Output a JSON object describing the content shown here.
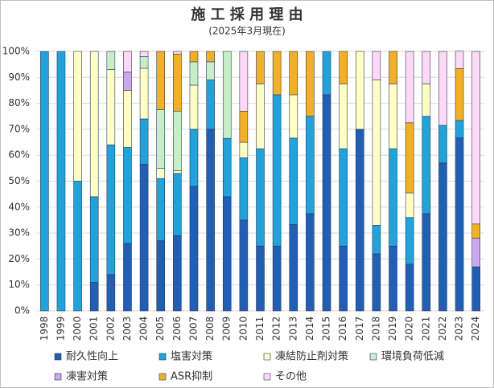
{
  "chart_data": {
    "type": "stacked_bar",
    "title": "施 工 採 用 理 由",
    "subtitle": "(2025年3月現在)",
    "categories": [
      "1998",
      "1999",
      "2000",
      "2001",
      "2002",
      "2003",
      "2004",
      "2005",
      "2006",
      "2007",
      "2008",
      "2009",
      "2010",
      "2011",
      "2012",
      "2013",
      "2014",
      "2015",
      "2016",
      "2017",
      "2018",
      "2019",
      "2020",
      "2021",
      "2022",
      "2023",
      "2024"
    ],
    "series": [
      {
        "name": "耐久性向上",
        "color": "#1f5fb8",
        "values": [
          0,
          0,
          0,
          11,
          14,
          26,
          56.5,
          27,
          29,
          48,
          70,
          44,
          35,
          25,
          25,
          33.3,
          37.5,
          83.3,
          25,
          70,
          22,
          25,
          18,
          37.5,
          57,
          66.7,
          17
        ]
      },
      {
        "name": "塩害対策",
        "color": "#1ea3dc",
        "values": [
          100,
          100,
          50,
          33,
          50,
          37,
          17.5,
          24,
          24,
          22,
          19,
          22.5,
          24,
          37.5,
          58.3,
          33.3,
          37.5,
          16.7,
          37.5,
          0,
          11,
          37.5,
          18,
          37.5,
          14.5,
          6.7,
          0
        ]
      },
      {
        "name": "凍結防止剤対策",
        "color": "#ffffc4",
        "values": [
          0,
          0,
          50,
          56,
          29,
          22,
          19.5,
          4,
          1,
          17,
          0,
          0,
          6,
          25,
          0,
          16.7,
          0,
          0,
          25,
          30,
          56,
          25,
          9.5,
          12.5,
          0,
          0,
          0
        ]
      },
      {
        "name": "環境負荷低減",
        "color": "#c6efc8",
        "values": [
          0,
          0,
          0,
          0,
          7,
          0,
          4.5,
          22.5,
          23,
          9,
          7,
          33.5,
          0,
          0,
          0,
          0,
          0,
          0,
          0,
          0,
          0,
          0,
          0,
          0,
          0,
          0,
          0
        ]
      },
      {
        "name": "凍害対策",
        "color": "#c9a8f0",
        "values": [
          0,
          0,
          0,
          0,
          0,
          7,
          0,
          0,
          0,
          0,
          0,
          0,
          0,
          0,
          0,
          0,
          0,
          0,
          0,
          0,
          0,
          0,
          0,
          0,
          0,
          0,
          11
        ]
      },
      {
        "name": "ASR抑制",
        "color": "#f5b021",
        "values": [
          0,
          0,
          0,
          0,
          0,
          0,
          0,
          22.5,
          22,
          4,
          4,
          0,
          12,
          12.5,
          16.7,
          16.7,
          25,
          0,
          12.5,
          0,
          0,
          12.5,
          27,
          0,
          0,
          20,
          5.5
        ]
      },
      {
        "name": "その他",
        "color": "#ffd8f8",
        "values": [
          0,
          0,
          0,
          0,
          0,
          8,
          2,
          0,
          1,
          0,
          0,
          0,
          23,
          0,
          0,
          0,
          0,
          0,
          0,
          0,
          11,
          0,
          27.5,
          12.5,
          28.5,
          6.7,
          66.5
        ]
      }
    ],
    "ylim": [
      0,
      100
    ],
    "yticks": [
      {
        "value": 0,
        "label": "0%"
      },
      {
        "value": 10,
        "label": "10%"
      },
      {
        "value": 20,
        "label": "20%"
      },
      {
        "value": 30,
        "label": "30%"
      },
      {
        "value": 40,
        "label": "40%"
      },
      {
        "value": 50,
        "label": "50%"
      },
      {
        "value": 60,
        "label": "60%"
      },
      {
        "value": 70,
        "label": "70%"
      },
      {
        "value": 80,
        "label": "80%"
      },
      {
        "value": 90,
        "label": "90%"
      },
      {
        "value": 100,
        "label": "100%"
      }
    ],
    "grid": true
  }
}
